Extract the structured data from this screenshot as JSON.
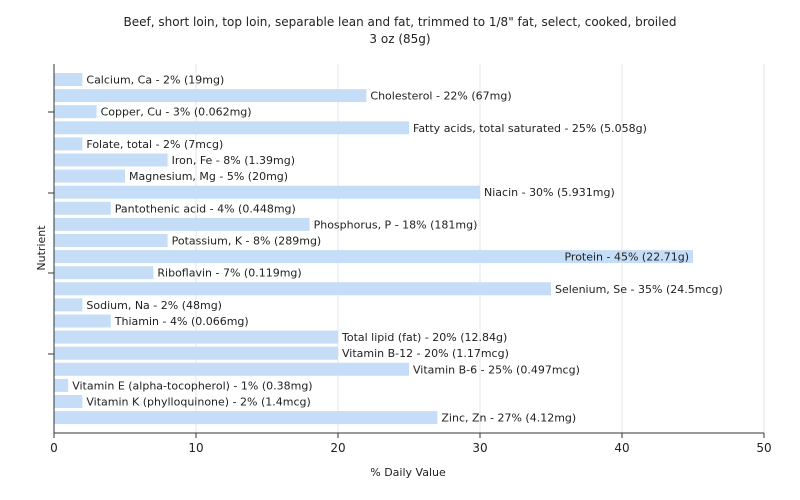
{
  "chart_data": {
    "type": "bar",
    "orientation": "horizontal",
    "title": "Beef, short loin, top loin, separable lean and fat, trimmed to 1/8\" fat, select, cooked, broiled",
    "subtitle": "3 oz (85g)",
    "xlabel": "% Daily Value",
    "ylabel": "Nutrient",
    "xlim": [
      0,
      50
    ],
    "xticks": [
      "0",
      "10",
      "20",
      "30",
      "40",
      "50"
    ],
    "grid": "vertical",
    "bar_color": "#c6ddf7",
    "categories": [
      "Calcium, Ca",
      "Cholesterol",
      "Copper, Cu",
      "Fatty acids, total saturated",
      "Folate, total",
      "Iron, Fe",
      "Magnesium, Mg",
      "Niacin",
      "Pantothenic acid",
      "Phosphorus, P",
      "Potassium, K",
      "Protein",
      "Riboflavin",
      "Selenium, Se",
      "Sodium, Na",
      "Thiamin",
      "Total lipid (fat)",
      "Vitamin B-12",
      "Vitamin B-6",
      "Vitamin E (alpha-tocopherol)",
      "Vitamin K (phylloquinone)",
      "Zinc, Zn"
    ],
    "values": [
      2,
      22,
      3,
      25,
      2,
      8,
      5,
      30,
      4,
      18,
      8,
      45,
      7,
      35,
      2,
      4,
      20,
      20,
      25,
      1,
      2,
      27
    ],
    "labels": [
      "Calcium, Ca - 2% (19mg)",
      "Cholesterol - 22% (67mg)",
      "Copper, Cu - 3% (0.062mg)",
      "Fatty acids, total saturated - 25% (5.058g)",
      "Folate, total - 2% (7mcg)",
      "Iron, Fe - 8% (1.39mg)",
      "Magnesium, Mg - 5% (20mg)",
      "Niacin - 30% (5.931mg)",
      "Pantothenic acid - 4% (0.448mg)",
      "Phosphorus, P - 18% (181mg)",
      "Potassium, K - 8% (289mg)",
      "Protein - 45% (22.71g)",
      "Riboflavin - 7% (0.119mg)",
      "Selenium, Se - 35% (24.5mcg)",
      "Sodium, Na - 2% (48mg)",
      "Thiamin - 4% (0.066mg)",
      "Total lipid (fat) - 20% (12.84g)",
      "Vitamin B-12 - 20% (1.17mcg)",
      "Vitamin B-6 - 25% (0.497mcg)",
      "Vitamin E (alpha-tocopherol) - 1% (0.38mg)",
      "Vitamin K (phylloquinone) - 2% (1.4mcg)",
      "Zinc, Zn - 27% (4.12mg)"
    ]
  }
}
